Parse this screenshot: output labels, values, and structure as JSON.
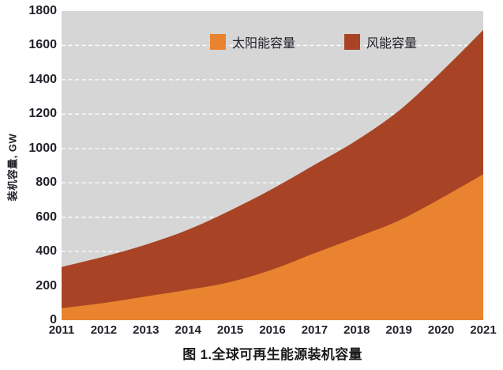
{
  "figure": {
    "caption": "图 1.全球可再生能源装机容量"
  },
  "chart_data": {
    "type": "area",
    "stacked": true,
    "smoothed": true,
    "title": "图 1.全球可再生能源装机容量",
    "xlabel": "",
    "ylabel": "装机容量, GW",
    "x": [
      2011,
      2012,
      2013,
      2014,
      2015,
      2016,
      2017,
      2018,
      2019,
      2020,
      2021
    ],
    "series": [
      {
        "name": "太阳能容量",
        "color": "#E9832F",
        "values": [
          70,
          100,
          138,
          177,
          222,
          295,
          390,
          483,
          580,
          710,
          850
        ]
      },
      {
        "name": "风能容量",
        "color": "#A84425",
        "values": [
          240,
          270,
          302,
          350,
          417,
          470,
          515,
          565,
          640,
          735,
          840
        ]
      }
    ],
    "stacked_totals": [
      310,
      370,
      440,
      527,
      639,
      765,
      905,
      1048,
      1220,
      1445,
      1690
    ],
    "ylim": [
      0,
      1800
    ],
    "ytick_step": 200,
    "grid": "horizontal dashed white, drawn beneath areas",
    "plot_bg": "#D6D6D6",
    "gridline_color": "#FFFFFF",
    "legend_position": "top-inside",
    "axis_lines": "none"
  }
}
